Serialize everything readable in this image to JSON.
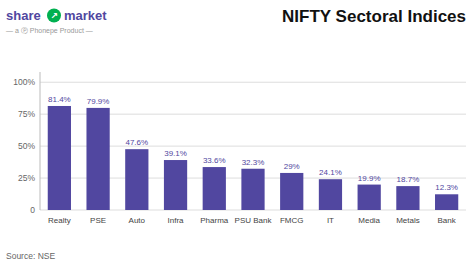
{
  "chart_data": {
    "type": "bar",
    "title": "NIFTY Sectoral Indices",
    "categories": [
      "Realty",
      "PSE",
      "Auto",
      "Infra",
      "Pharma",
      "PSU Bank",
      "FMCG",
      "IT",
      "Media",
      "Metals",
      "Bank"
    ],
    "values": [
      81.4,
      79.9,
      47.6,
      39.1,
      33.6,
      32.3,
      29.0,
      24.1,
      19.9,
      18.7,
      12.3
    ],
    "value_labels": [
      "81.4%",
      "79.9%",
      "47.6%",
      "39.1%",
      "33.6%",
      "32.3%",
      "29%",
      "24.1%",
      "19.9%",
      "18.7%",
      "12.3%"
    ],
    "color": "#5147A0",
    "ylim": [
      0,
      108
    ],
    "yticks": [
      0,
      {
        "value": 25,
        "label": "25%"
      },
      {
        "value": 50,
        "label": "50%"
      },
      {
        "value": 75,
        "label": "75%"
      },
      {
        "value": 100,
        "label": "100%"
      }
    ],
    "grid": true,
    "data_labels": true,
    "annotations": [
      {
        "text": "share",
        "color": "#5147A0"
      },
      {
        "text": "↗",
        "color": "#00B050"
      },
      {
        "text": "market",
        "color": "#5147A0"
      },
      {
        "text": "— a  Ⓟ  Phonepe Product —",
        "color": "#999999"
      },
      {
        "text": "Source: NSE",
        "color": "#666666"
      }
    ]
  }
}
